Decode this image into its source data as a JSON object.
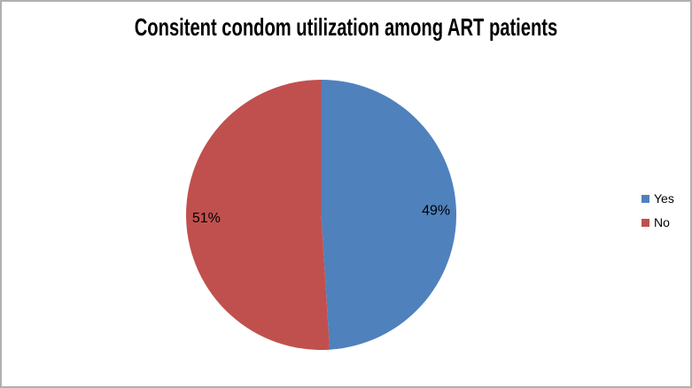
{
  "frame": {
    "background": "#ffffff",
    "border_color": "#b0b0b0"
  },
  "chart_data": {
    "type": "pie",
    "title": "Consitent condom utilization among ART patients",
    "title_color": "#000000",
    "categories": [
      "Yes",
      "No"
    ],
    "values": [
      49,
      51
    ],
    "data_labels": [
      "49%",
      "51%"
    ],
    "colors": [
      "#4f81bd",
      "#c0504d"
    ],
    "label_color": "#000000",
    "legend_position": "right",
    "start_angle_deg": 0,
    "direction": "clockwise"
  }
}
